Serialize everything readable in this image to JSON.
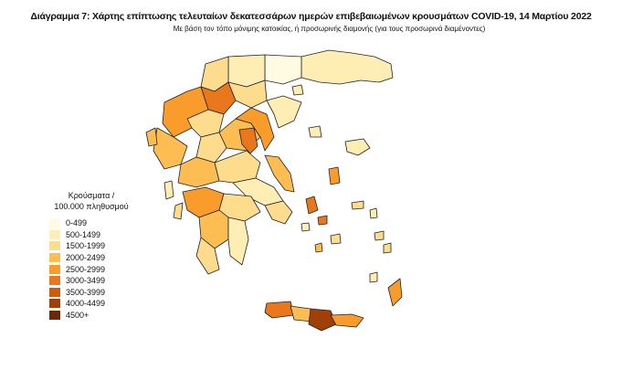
{
  "title": "Διάγραμμα 7: Χάρτης επίπτωσης τελευταίων δεκατεσσάρων ημερών επιβεβαιωμένων κρουσμάτων COVID-19, 14 Μαρτίου 2022",
  "subtitle": "Με βάση τον τόπο μόνιμης κατοικίας, ή προσωρινής διαμονής (για τους προσωρινά διαμένοντες)",
  "legend": {
    "title_line1": "Κρούσματα /",
    "title_line2": "100.000 πληθυσμού",
    "items": [
      {
        "label": "0-499",
        "color": "#fffbe2"
      },
      {
        "label": "500-1499",
        "color": "#feeeb4"
      },
      {
        "label": "1500-1999",
        "color": "#fedc8e"
      },
      {
        "label": "2000-2499",
        "color": "#fdbd52"
      },
      {
        "label": "2500-2999",
        "color": "#fa9c2c"
      },
      {
        "label": "3000-3499",
        "color": "#e8781b"
      },
      {
        "label": "3500-3999",
        "color": "#cd5b0d"
      },
      {
        "label": "4000-4499",
        "color": "#a13f08"
      },
      {
        "label": "4500+",
        "color": "#6b2806"
      }
    ]
  }
}
